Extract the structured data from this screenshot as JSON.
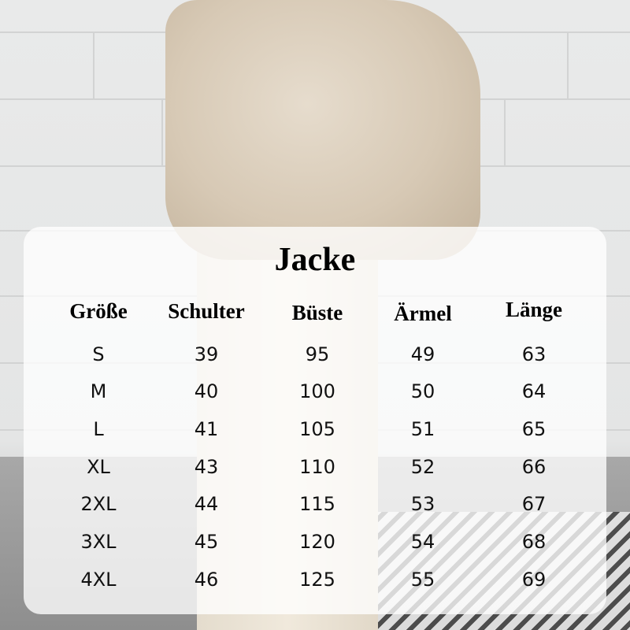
{
  "size_chart": {
    "title": "Jacke",
    "headers": [
      "Größe",
      "Schulter",
      "Büste",
      "Ärmel",
      "Länge"
    ],
    "rows": [
      [
        "S",
        "39",
        "95",
        "49",
        "63"
      ],
      [
        "M",
        "40",
        "100",
        "50",
        "64"
      ],
      [
        "L",
        "41",
        "105",
        "51",
        "65"
      ],
      [
        "XL",
        "43",
        "110",
        "52",
        "66"
      ],
      [
        "2XL",
        "44",
        "115",
        "53",
        "67"
      ],
      [
        "3XL",
        "45",
        "120",
        "54",
        "68"
      ],
      [
        "4XL",
        "46",
        "125",
        "55",
        "69"
      ]
    ]
  }
}
